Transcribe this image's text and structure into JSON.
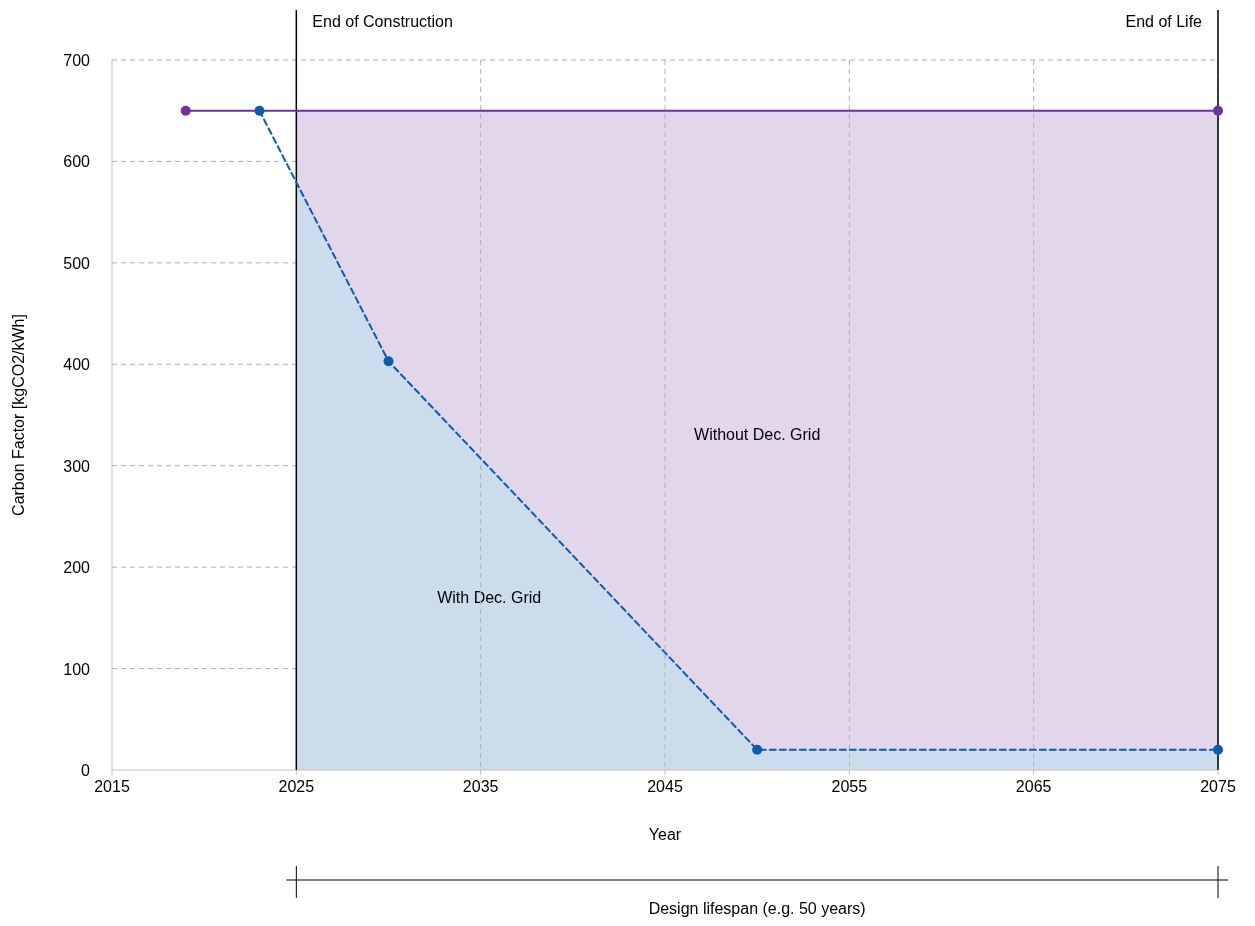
{
  "chart_data": {
    "type": "line",
    "xlabel": "Year",
    "ylabel": "Carbon Factor [kgCO2/kWh]",
    "xlim": [
      2015,
      2075
    ],
    "xticks": [
      2015,
      2025,
      2035,
      2045,
      2055,
      2065,
      2075
    ],
    "ylim": [
      0,
      700
    ],
    "yticks": [
      0,
      100,
      200,
      300,
      400,
      500,
      600,
      700
    ],
    "grid": true,
    "marker": "circle",
    "series": [
      {
        "type": "area",
        "name": "Without Dec. Grid",
        "color": "#e2d6eb",
        "marker": "none",
        "x": [
          2025,
          2075
        ],
        "values": [
          650,
          650
        ]
      },
      {
        "type": "area",
        "name": "With Dec. Grid",
        "color": "#cddcec",
        "marker": "none",
        "x": [
          2025,
          2030,
          2050,
          2075
        ],
        "values": [
          580,
          403,
          20,
          20
        ]
      },
      {
        "color": "#7030a0",
        "line_style": "solid",
        "x": [
          2019,
          2075
        ],
        "values": [
          650,
          650
        ]
      },
      {
        "color": "#0b5cad",
        "line_style": "dashed",
        "x": [
          2023,
          2030,
          2050,
          2075
        ],
        "values": [
          650,
          403,
          20,
          20
        ]
      }
    ],
    "ref_lines": [
      {
        "axis": "x",
        "value": 2025,
        "label": "End of Construction",
        "color": "#000000"
      },
      {
        "axis": "x",
        "value": 2075,
        "label": "End of Life",
        "color": "#000000"
      }
    ],
    "annotations": [
      "Design lifespan (e.g. 50 years)"
    ]
  }
}
